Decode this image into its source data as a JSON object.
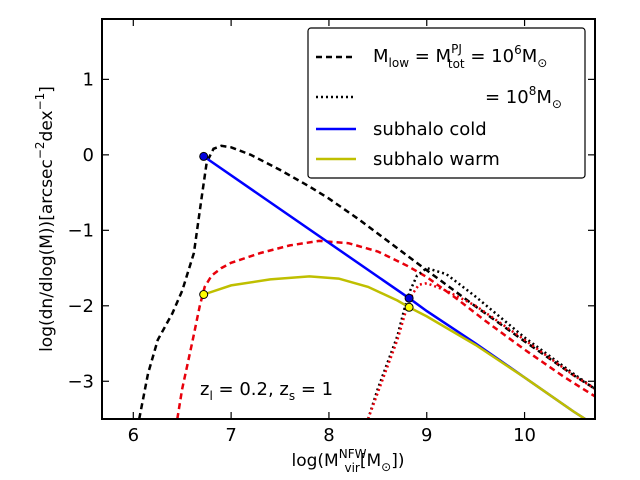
{
  "chart_data": {
    "type": "line",
    "xlabel": {
      "prefix": "log(M",
      "sup": "NFW",
      "sub": "vir",
      "mid": "[M",
      "sun": "⊙",
      "suffix": "])"
    },
    "ylabel": {
      "text": "log(dn/dlog(M))[arcsec",
      "exp1": "−2",
      "mid": "dex",
      "exp2": "−1",
      "suffix": "]"
    },
    "xlim": [
      5.68,
      10.72
    ],
    "ylim": [
      -3.5,
      1.8
    ],
    "xticks": [
      6,
      7,
      8,
      9,
      10
    ],
    "xtick_labels": [
      "6",
      "7",
      "8",
      "9",
      "10"
    ],
    "yticks": [
      1,
      0,
      -1,
      -2,
      -3
    ],
    "ytick_labels": [
      "1",
      "0",
      "−1",
      "−2",
      "−3"
    ],
    "colors": {
      "black": "#000000",
      "red": "#e8000b",
      "blue": "#0000ff",
      "yellow": "#bfbf00",
      "marker_blue": "#0000dd",
      "marker_yellow": "#ffff00"
    },
    "series": [
      {
        "name": "black-dashed",
        "color": "black",
        "dash": "dashed",
        "x": [
          6.06,
          6.15,
          6.25,
          6.4,
          6.5,
          6.62,
          6.7,
          6.75,
          6.82,
          6.9,
          7.0,
          7.2,
          7.5,
          7.8,
          8.0,
          8.3,
          8.6,
          9.0,
          9.5,
          10.0,
          10.5,
          10.72
        ],
        "y": [
          -3.5,
          -2.9,
          -2.45,
          -2.1,
          -1.8,
          -1.3,
          -0.55,
          -0.1,
          0.08,
          0.12,
          0.1,
          0.0,
          -0.2,
          -0.42,
          -0.58,
          -0.85,
          -1.14,
          -1.53,
          -2.01,
          -2.47,
          -2.92,
          -3.1
        ]
      },
      {
        "name": "red-dashed",
        "color": "red",
        "dash": "dashed",
        "x": [
          6.45,
          6.5,
          6.6,
          6.68,
          6.73,
          6.8,
          6.9,
          7.0,
          7.3,
          7.6,
          7.9,
          8.2,
          8.5,
          8.8,
          9.0,
          9.3,
          9.6,
          10.0,
          10.4,
          10.72
        ],
        "y": [
          -3.5,
          -3.1,
          -2.5,
          -2.0,
          -1.75,
          -1.6,
          -1.5,
          -1.43,
          -1.3,
          -1.2,
          -1.14,
          -1.17,
          -1.28,
          -1.47,
          -1.62,
          -1.9,
          -2.2,
          -2.58,
          -2.94,
          -3.2
        ]
      },
      {
        "name": "black-dotted",
        "color": "black",
        "dash": "dotted",
        "x": [
          8.4,
          8.5,
          8.6,
          8.7,
          8.78,
          8.83,
          8.9,
          9.0,
          9.2,
          9.5,
          10.0,
          10.5,
          10.72
        ],
        "y": [
          -3.5,
          -3.1,
          -2.75,
          -2.4,
          -2.0,
          -1.8,
          -1.6,
          -1.5,
          -1.58,
          -1.88,
          -2.42,
          -2.9,
          -3.1
        ]
      },
      {
        "name": "red-dotted",
        "color": "red",
        "dash": "dotted",
        "x": [
          8.4,
          8.5,
          8.6,
          8.7,
          8.78,
          8.85,
          8.92,
          9.0,
          9.2,
          9.5,
          10.0,
          10.5,
          10.72
        ],
        "y": [
          -3.5,
          -3.15,
          -2.8,
          -2.45,
          -2.1,
          -1.85,
          -1.72,
          -1.7,
          -1.8,
          -2.0,
          -2.45,
          -2.92,
          -3.1
        ]
      },
      {
        "name": "subhalo cold",
        "color": "blue",
        "dash": "solid",
        "x": [
          6.72,
          8.82,
          9.0,
          9.5,
          10.0,
          10.5,
          10.62
        ],
        "y": [
          -0.02,
          -1.9,
          -2.07,
          -2.5,
          -2.95,
          -3.4,
          -3.5
        ]
      },
      {
        "name": "subhalo warm",
        "color": "yellow",
        "dash": "solid",
        "x": [
          6.72,
          7.0,
          7.4,
          7.8,
          8.1,
          8.4,
          8.7,
          8.82,
          9.0,
          9.5,
          10.0,
          10.5,
          10.62
        ],
        "y": [
          -1.85,
          -1.73,
          -1.65,
          -1.61,
          -1.64,
          -1.75,
          -1.93,
          -2.02,
          -2.14,
          -2.52,
          -2.95,
          -3.4,
          -3.5
        ]
      }
    ],
    "markers": [
      {
        "name": "marker-cold-low",
        "x": 6.72,
        "y": -0.02,
        "fill": "marker_blue"
      },
      {
        "name": "marker-cold-high",
        "x": 8.82,
        "y": -1.9,
        "fill": "marker_blue"
      },
      {
        "name": "marker-warm-low",
        "x": 6.72,
        "y": -1.85,
        "fill": "marker_yellow"
      },
      {
        "name": "marker-warm-high",
        "x": 8.82,
        "y": -2.02,
        "fill": "marker_yellow"
      }
    ],
    "legend": {
      "location": "top-right",
      "entries": [
        {
          "name": "legend-dashed",
          "style": "dashed",
          "color": "black",
          "label_main": "M",
          "label_sub1": "low",
          "label_eq": " = M",
          "label_sup2": "PJ",
          "label_sub2": "tot",
          "label_eq2": " = 10",
          "label_exp": "6",
          "label_m": "M",
          "label_sun": "⊙"
        },
        {
          "name": "legend-dotted",
          "style": "dotted",
          "color": "black",
          "label_eq": "= 10",
          "label_exp": "8",
          "label_m": "M",
          "label_sun": "⊙"
        },
        {
          "name": "legend-cold",
          "style": "solid",
          "color": "blue",
          "label": "subhalo cold"
        },
        {
          "name": "legend-warm",
          "style": "solid",
          "color": "yellow",
          "label": "subhalo warm"
        }
      ]
    },
    "annotation": {
      "z_main": "z",
      "zl_sub": "l",
      "zl_val": " = 0.2, z",
      "zs_sub": "s",
      "zs_val": " = 1"
    }
  }
}
